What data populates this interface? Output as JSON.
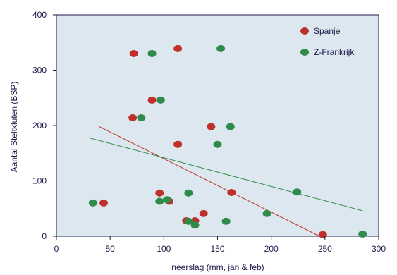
{
  "chart_data": {
    "type": "scatter",
    "xlabel": "neerslag (mm, jan & feb)",
    "ylabel": "Aantal Steltkluten (BSP)",
    "xlim": [
      0,
      300
    ],
    "ylim": [
      0,
      400
    ],
    "xticks": [
      "0",
      "50",
      "100",
      "150",
      "200",
      "250",
      "300"
    ],
    "yticks": [
      "0",
      "100",
      "200",
      "300",
      "400"
    ],
    "grid": false,
    "legend_position": "top-right",
    "plot_background": "#dde7f0",
    "series": [
      {
        "name": "Spanje",
        "color": "#c0302a",
        "points": [
          [
            72,
            330
          ],
          [
            113,
            339
          ],
          [
            89,
            246
          ],
          [
            71,
            214
          ],
          [
            144,
            198
          ],
          [
            113,
            166
          ],
          [
            96,
            78
          ],
          [
            163,
            79
          ],
          [
            44,
            60
          ],
          [
            105,
            63
          ],
          [
            137,
            41
          ],
          [
            121,
            28
          ],
          [
            129,
            28
          ],
          [
            248,
            3
          ]
        ],
        "trend": [
          [
            40,
            198
          ],
          [
            245,
            0
          ]
        ]
      },
      {
        "name": "Z-Frankrijk",
        "color": "#2e8b4a",
        "points": [
          [
            153,
            339
          ],
          [
            89,
            330
          ],
          [
            97,
            246
          ],
          [
            79,
            214
          ],
          [
            162,
            198
          ],
          [
            150,
            166
          ],
          [
            123,
            78
          ],
          [
            224,
            80
          ],
          [
            34,
            60
          ],
          [
            96,
            63
          ],
          [
            103,
            66
          ],
          [
            196,
            41
          ],
          [
            123,
            27
          ],
          [
            129,
            20
          ],
          [
            158,
            27
          ],
          [
            285,
            4
          ]
        ],
        "trend": [
          [
            30,
            178
          ],
          [
            285,
            46
          ]
        ]
      }
    ]
  }
}
